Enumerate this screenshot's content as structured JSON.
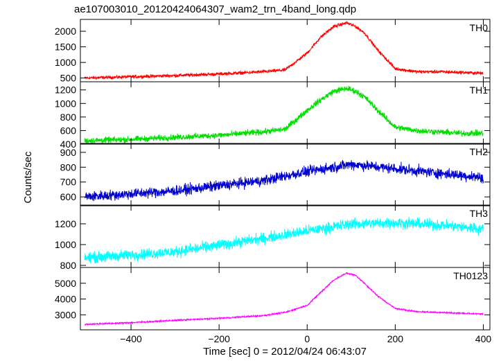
{
  "chart_data": {
    "type": "line",
    "title": "ae107003010_20120424064307_wam2_trn_4band_long.qdp",
    "xlabel": "Time [sec] 0 = 2012/04/24 06:43:07",
    "ylabel": "Counts/sec",
    "xlim": [
      -515,
      415
    ],
    "xticks": [
      -400,
      -200,
      0,
      200,
      400
    ],
    "grid": false,
    "panels": [
      {
        "name": "TH0",
        "color": "#ff0000",
        "ylim": [
          380,
          2380
        ],
        "yticks": [
          500,
          1000,
          1500,
          2000
        ],
        "noise": 45,
        "x": [
          -505,
          -400,
          -300,
          -200,
          -100,
          -50,
          0,
          30,
          60,
          90,
          110,
          130,
          160,
          200,
          250,
          300,
          350,
          400
        ],
        "y": [
          500,
          540,
          580,
          630,
          700,
          760,
          1300,
          1800,
          2150,
          2270,
          2150,
          1950,
          1400,
          800,
          700,
          700,
          680,
          650
        ]
      },
      {
        "name": "TH1",
        "color": "#00e000",
        "ylim": [
          400,
          1320
        ],
        "yticks": [
          400,
          600,
          800,
          1000,
          1200
        ],
        "noise": 38,
        "x": [
          -505,
          -400,
          -300,
          -200,
          -100,
          -50,
          0,
          30,
          60,
          90,
          110,
          130,
          160,
          200,
          250,
          300,
          350,
          400
        ],
        "y": [
          450,
          470,
          500,
          530,
          580,
          620,
          900,
          1050,
          1180,
          1220,
          1180,
          1100,
          900,
          650,
          600,
          580,
          560,
          560
        ]
      },
      {
        "name": "TH2",
        "color": "#0000d0",
        "ylim": [
          540,
          960
        ],
        "yticks": [
          600,
          700,
          800,
          900
        ],
        "noise": 30,
        "x": [
          -505,
          -300,
          -100,
          0,
          100,
          200,
          300,
          400
        ],
        "y": [
          600,
          640,
          710,
          770,
          820,
          790,
          760,
          730
        ]
      },
      {
        "name": "TH3",
        "color": "#00ffff",
        "ylim": [
          780,
          1380
        ],
        "yticks": [
          800,
          1000,
          1200
        ],
        "noise": 45,
        "x": [
          -505,
          -300,
          -100,
          0,
          100,
          200,
          300,
          400
        ],
        "y": [
          870,
          930,
          1060,
          1130,
          1200,
          1210,
          1190,
          1150
        ]
      },
      {
        "name": "TH0123",
        "color": "#ff00ff",
        "ylim": [
          2050,
          6000
        ],
        "yticks": [
          3000,
          4000,
          5000
        ],
        "noise": 40,
        "x": [
          -505,
          -400,
          -300,
          -200,
          -100,
          -50,
          0,
          30,
          60,
          90,
          110,
          130,
          160,
          200,
          250,
          300,
          350,
          400
        ],
        "y": [
          2400,
          2500,
          2650,
          2780,
          2950,
          3150,
          3600,
          4400,
          5200,
          5650,
          5500,
          5000,
          4200,
          3400,
          3200,
          3150,
          3100,
          3050
        ]
      }
    ]
  }
}
